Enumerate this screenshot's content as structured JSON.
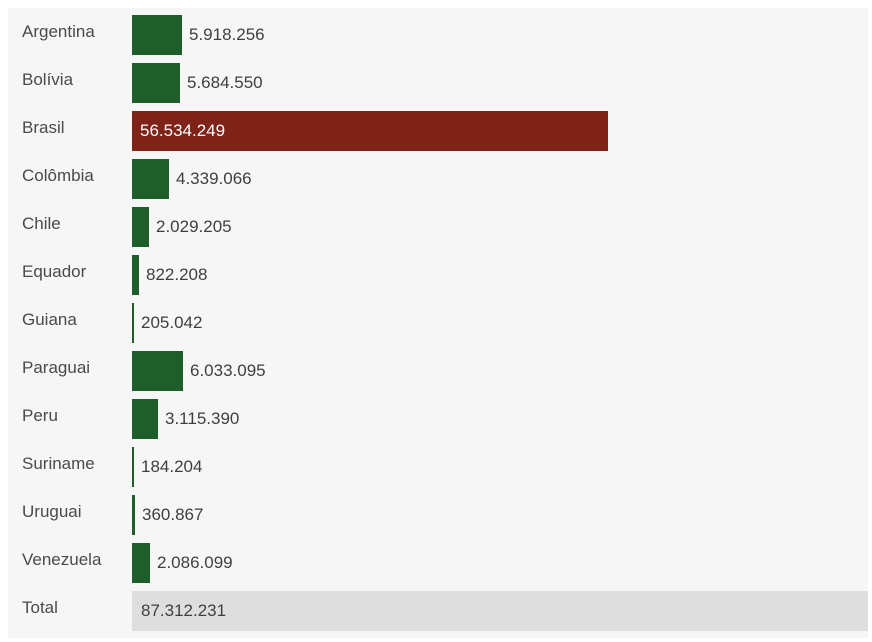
{
  "colors": {
    "bar": "#1f5e2b",
    "highlight": "#7f2217",
    "total_background": "#dedede"
  },
  "chart_data": {
    "type": "bar",
    "orientation": "horizontal",
    "categories": [
      "Argentina",
      "Bolívia",
      "Brasil",
      "Colômbia",
      "Chile",
      "Equador",
      "Guiana",
      "Paraguai",
      "Peru",
      "Suriname",
      "Uruguai",
      "Venezuela"
    ],
    "values": [
      5918256,
      5684550,
      56534249,
      4339066,
      2029205,
      822208,
      205042,
      6033095,
      3115390,
      184204,
      360867,
      2086099
    ],
    "value_labels": [
      "5.918.256",
      "5.684.550",
      "56.534.249",
      "4.339.066",
      "2.029.205",
      "822.208",
      "205.042",
      "6.033.095",
      "3.115.390",
      "184.204",
      "360.867",
      "2.086.099"
    ],
    "highlight_category": "Brasil",
    "xlim": [
      0,
      56534249
    ],
    "total": {
      "label": "Total",
      "value": 87312231,
      "value_label": "87.312.231"
    },
    "title": "",
    "xlabel": "",
    "ylabel": "",
    "grid": false,
    "legend": "none"
  }
}
